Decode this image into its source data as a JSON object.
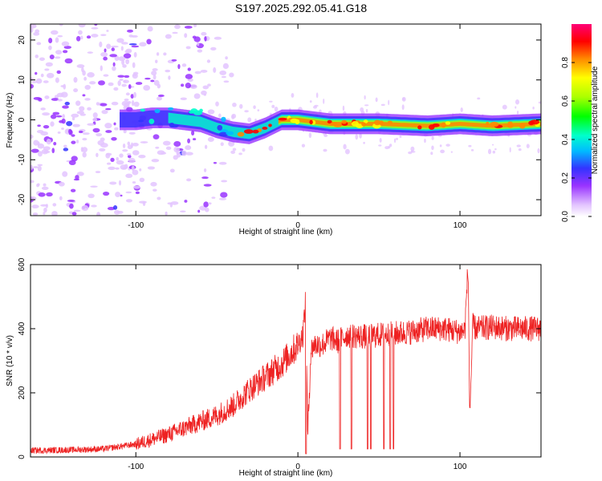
{
  "title": "S197.2025.292.05.41.G18",
  "colors": {
    "snr_line": "#ee2222",
    "frame": "#000000"
  },
  "chart_data": [
    {
      "type": "heatmap",
      "xlabel": "Height of straight line (km)",
      "ylabel": "Frequency (Hz)",
      "xlim": [
        -165,
        150
      ],
      "ylim": [
        -24,
        24
      ],
      "xticks": [
        -100,
        0,
        100
      ],
      "yticks": [
        -20,
        -10,
        0,
        10,
        20
      ],
      "colorbar": {
        "label": "Normalized spectral amplitude",
        "range": [
          0,
          1
        ],
        "ticks": [
          0.0,
          0.2,
          0.4,
          0.6,
          0.8
        ],
        "colormap": [
          "#ffffff",
          "#e3c4ff",
          "#9933ff",
          "#3333ff",
          "#00bbff",
          "#00ffcc",
          "#00ff00",
          "#aaff00",
          "#ffff00",
          "#ff8800",
          "#ff0000",
          "#ff0077"
        ]
      },
      "ridge": [
        [
          -100,
          0.0
        ],
        [
          -90,
          0.5
        ],
        [
          -80,
          0.5
        ],
        [
          -70,
          0.0
        ],
        [
          -60,
          -0.5
        ],
        [
          -50,
          -2.0
        ],
        [
          -40,
          -3.0
        ],
        [
          -30,
          -3.5
        ],
        [
          -20,
          -2.0
        ],
        [
          -10,
          0.0
        ],
        [
          0,
          0.0
        ],
        [
          20,
          -1.0
        ],
        [
          50,
          -1.0
        ],
        [
          80,
          -1.5
        ],
        [
          100,
          -1.0
        ],
        [
          120,
          -1.5
        ],
        [
          150,
          -1.0
        ]
      ]
    },
    {
      "type": "line",
      "xlabel": "Height of straight line (km)",
      "ylabel": "SNR (10 * v/v)",
      "xlim": [
        -165,
        150
      ],
      "ylim": [
        0,
        600
      ],
      "xticks": [
        -100,
        0,
        100
      ],
      "yticks": [
        0,
        200,
        400,
        600
      ],
      "series": [
        {
          "x": [
            -165,
            -140,
            -120,
            -100,
            -90,
            -80,
            -70,
            -60,
            -50,
            -40,
            -30,
            -20,
            -10,
            -5,
            0,
            3,
            5,
            6,
            8,
            10,
            15,
            20,
            25,
            30,
            40,
            50,
            60,
            70,
            80,
            90,
            100,
            103,
            105,
            106,
            108,
            110,
            120,
            130,
            140,
            150
          ],
          "values": [
            20,
            22,
            25,
            40,
            55,
            70,
            90,
            110,
            130,
            160,
            210,
            250,
            290,
            320,
            350,
            380,
            500,
            60,
            330,
            350,
            350,
            370,
            360,
            380,
            375,
            380,
            385,
            390,
            400,
            400,
            390,
            395,
            600,
            130,
            410,
            400,
            405,
            400,
            400,
            400
          ]
        }
      ],
      "dips": [
        [
          5,
          10
        ],
        [
          26,
          25
        ],
        [
          33,
          25
        ],
        [
          43,
          25
        ],
        [
          45,
          25
        ],
        [
          53,
          25
        ],
        [
          57,
          25
        ],
        [
          59,
          25
        ]
      ]
    }
  ]
}
